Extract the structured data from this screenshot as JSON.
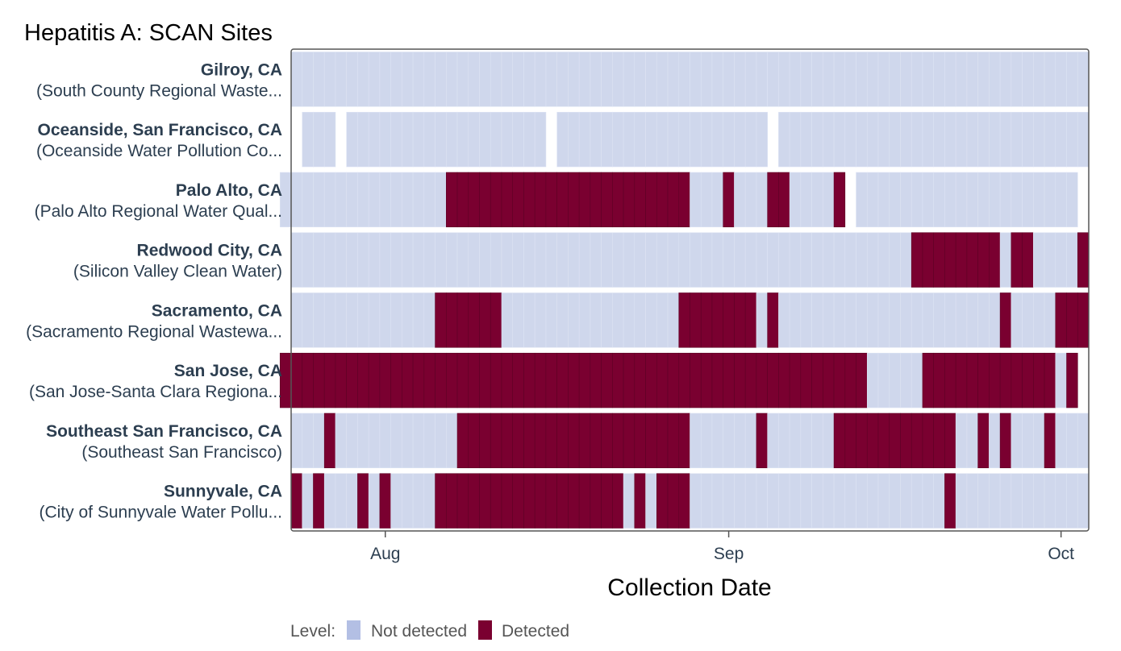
{
  "chart_data": {
    "type": "heatmap",
    "title": "Hepatitis A: SCAN Sites",
    "xlabel": "Collection Date",
    "x_range": [
      "2024-07-24",
      "2024-10-03"
    ],
    "x_ticks": [
      {
        "date": "2024-08-01",
        "label": "Aug"
      },
      {
        "date": "2024-09-01",
        "label": "Sep"
      },
      {
        "date": "2024-10-01",
        "label": "Oct"
      }
    ],
    "legend": {
      "title": "Level:",
      "position": "bottom",
      "entries": [
        {
          "label": "Not detected",
          "color": "#cfd7ec",
          "swatch": "#b3bfe4"
        },
        {
          "label": "Detected",
          "color": "#7a0030",
          "swatch": "#7a0030"
        }
      ]
    },
    "sites": [
      {
        "name": "Gilroy, CA",
        "sub": "(South County Regional Waste...",
        "range": [
          "2024-07-24",
          "2024-10-03"
        ],
        "detected": [],
        "missing": []
      },
      {
        "name": "Oceanside, San Francisco, CA",
        "sub": "(Oceanside Water Pollution Co...",
        "range": [
          "2024-07-25",
          "2024-10-03"
        ],
        "detected": [],
        "missing": [
          "2024-07-28",
          "2024-08-16",
          "2024-09-05"
        ]
      },
      {
        "name": "Palo Alto, CA",
        "sub": "(Palo Alto Regional Water Qual...",
        "range": [
          "2024-07-23",
          "2024-10-02"
        ],
        "detected": [
          [
            "2024-08-07",
            "2024-08-27"
          ],
          [
            "2024-08-28",
            "2024-08-28"
          ],
          [
            "2024-09-01",
            "2024-09-01"
          ],
          [
            "2024-09-05",
            "2024-09-06"
          ],
          [
            "2024-09-11",
            "2024-09-11"
          ]
        ],
        "missing": [
          "2024-09-12"
        ]
      },
      {
        "name": "Redwood City, CA",
        "sub": "(Silicon Valley Clean Water)",
        "range": [
          "2024-07-24",
          "2024-10-03"
        ],
        "detected": [
          [
            "2024-09-18",
            "2024-09-25"
          ],
          [
            "2024-09-27",
            "2024-09-28"
          ],
          [
            "2024-10-03",
            "2024-10-03"
          ]
        ],
        "missing": []
      },
      {
        "name": "Sacramento, CA",
        "sub": "(Sacramento Regional Wastewa...",
        "range": [
          "2024-07-24",
          "2024-10-03"
        ],
        "detected": [
          [
            "2024-08-06",
            "2024-08-11"
          ],
          [
            "2024-08-28",
            "2024-09-03"
          ],
          [
            "2024-09-05",
            "2024-09-05"
          ],
          [
            "2024-09-26",
            "2024-09-26"
          ],
          [
            "2024-10-01",
            "2024-10-03"
          ]
        ],
        "missing": []
      },
      {
        "name": "San Jose, CA",
        "sub": "(San Jose-Santa Clara Regiona...",
        "range": [
          "2024-07-23",
          "2024-10-02"
        ],
        "detected": [
          [
            "2024-07-23",
            "2024-09-13"
          ],
          [
            "2024-09-19",
            "2024-09-30"
          ],
          [
            "2024-10-02",
            "2024-10-02"
          ]
        ],
        "missing": []
      },
      {
        "name": "Southeast San Francisco, CA",
        "sub": "(Southeast San Francisco)",
        "range": [
          "2024-07-24",
          "2024-10-03"
        ],
        "detected": [
          [
            "2024-07-27",
            "2024-07-27"
          ],
          [
            "2024-08-08",
            "2024-08-28"
          ],
          [
            "2024-09-04",
            "2024-09-04"
          ],
          [
            "2024-09-11",
            "2024-09-21"
          ],
          [
            "2024-09-24",
            "2024-09-24"
          ],
          [
            "2024-09-26",
            "2024-09-26"
          ],
          [
            "2024-09-30",
            "2024-09-30"
          ]
        ],
        "missing": []
      },
      {
        "name": "Sunnyvale, CA",
        "sub": "(City of Sunnyvale Water Pollu...",
        "range": [
          "2024-07-24",
          "2024-10-03"
        ],
        "detected": [
          [
            "2024-07-24",
            "2024-07-24"
          ],
          [
            "2024-07-26",
            "2024-07-26"
          ],
          [
            "2024-07-30",
            "2024-07-30"
          ],
          [
            "2024-08-01",
            "2024-08-01"
          ],
          [
            "2024-08-06",
            "2024-08-22"
          ],
          [
            "2024-08-24",
            "2024-08-24"
          ],
          [
            "2024-08-26",
            "2024-08-27"
          ],
          [
            "2024-08-28",
            "2024-08-28"
          ],
          [
            "2024-09-21",
            "2024-09-21"
          ]
        ],
        "missing": []
      }
    ]
  }
}
